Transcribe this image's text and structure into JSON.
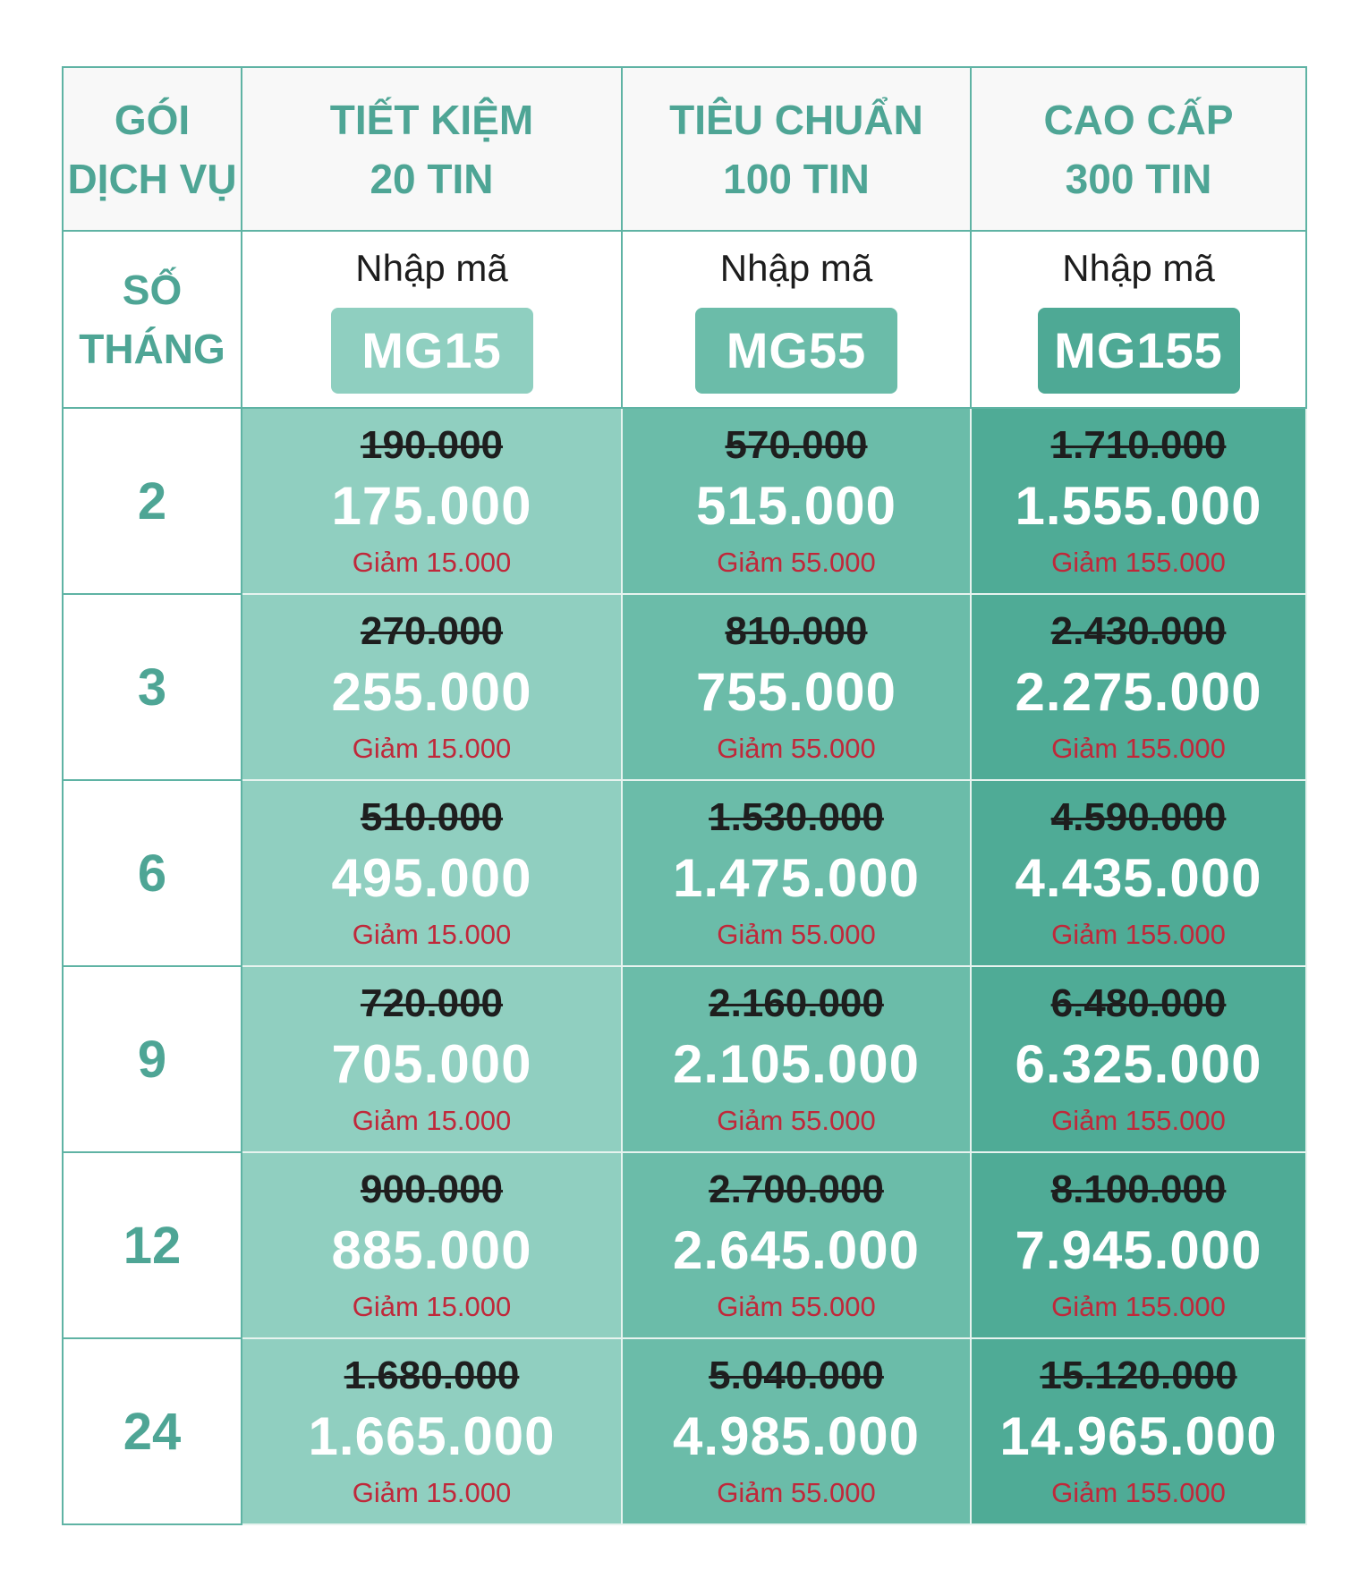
{
  "header": {
    "service_label_line1": "GÓI",
    "service_label_line2": "DỊCH VỤ",
    "packages": [
      {
        "line1": "TIẾT KIỆM",
        "line2": "20 TIN"
      },
      {
        "line1": "TIÊU CHUẨN",
        "line2": "100 TIN"
      },
      {
        "line1": "CAO CẤP",
        "line2": "300 TIN"
      }
    ]
  },
  "code_row": {
    "months_label_line1": "SỐ",
    "months_label_line2": "THÁNG",
    "codes": [
      {
        "prompt": "Nhập mã",
        "code": "MG15"
      },
      {
        "prompt": "Nhập mã",
        "code": "MG55"
      },
      {
        "prompt": "Nhập mã",
        "code": "MG155"
      }
    ]
  },
  "rows": [
    {
      "months": "2",
      "cells": [
        {
          "old": "190.000",
          "new": "175.000",
          "discount": "Giảm 15.000"
        },
        {
          "old": "570.000",
          "new": "515.000",
          "discount": "Giảm 55.000"
        },
        {
          "old": "1.710.000",
          "new": "1.555.000",
          "discount": "Giảm 155.000"
        }
      ]
    },
    {
      "months": "3",
      "cells": [
        {
          "old": "270.000",
          "new": "255.000",
          "discount": "Giảm 15.000"
        },
        {
          "old": "810.000",
          "new": "755.000",
          "discount": "Giảm 55.000"
        },
        {
          "old": "2.430.000",
          "new": "2.275.000",
          "discount": "Giảm 155.000"
        }
      ]
    },
    {
      "months": "6",
      "cells": [
        {
          "old": "510.000",
          "new": "495.000",
          "discount": "Giảm 15.000"
        },
        {
          "old": "1.530.000",
          "new": "1.475.000",
          "discount": "Giảm 55.000"
        },
        {
          "old": "4.590.000",
          "new": "4.435.000",
          "discount": "Giảm 155.000"
        }
      ]
    },
    {
      "months": "9",
      "cells": [
        {
          "old": "720.000",
          "new": "705.000",
          "discount": "Giảm 15.000"
        },
        {
          "old": "2.160.000",
          "new": "2.105.000",
          "discount": "Giảm 55.000"
        },
        {
          "old": "6.480.000",
          "new": "6.325.000",
          "discount": "Giảm 155.000"
        }
      ]
    },
    {
      "months": "12",
      "cells": [
        {
          "old": "900.000",
          "new": "885.000",
          "discount": "Giảm 15.000"
        },
        {
          "old": "2.700.000",
          "new": "2.645.000",
          "discount": "Giảm 55.000"
        },
        {
          "old": "8.100.000",
          "new": "7.945.000",
          "discount": "Giảm 155.000"
        }
      ]
    },
    {
      "months": "24",
      "cells": [
        {
          "old": "1.680.000",
          "new": "1.665.000",
          "discount": "Giảm 15.000"
        },
        {
          "old": "5.040.000",
          "new": "4.985.000",
          "discount": "Giảm 55.000"
        },
        {
          "old": "15.120.000",
          "new": "14.965.000",
          "discount": "Giảm 155.000"
        }
      ]
    }
  ],
  "colors": {
    "accent_text": "#4ea595",
    "border": "#5fb3a4",
    "column_1": "#90cfc0",
    "column_2": "#6bbca9",
    "column_3": "#4fab96",
    "discount_text": "#c0283a"
  }
}
